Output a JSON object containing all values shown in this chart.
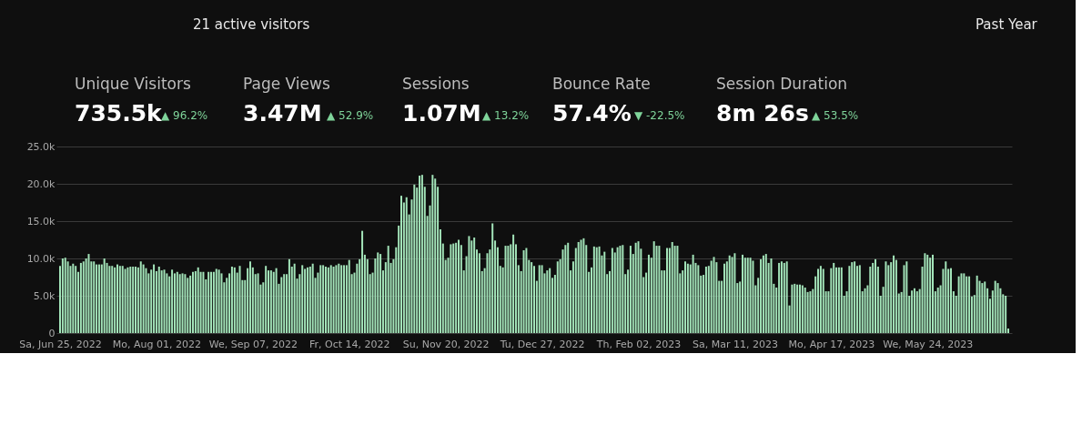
{
  "chart_data": {
    "type": "bar",
    "annotations": [
      "21 active visitors",
      "Past Year",
      "Unique Visitors",
      "735.5k",
      "▲ 96.2%",
      "Page Views",
      "3.47M",
      "▲ 52.9%",
      "Sessions",
      "1.07M",
      "▲ 13.2%",
      "Bounce Rate",
      "57.4%",
      "▼ -22.5%",
      "Session Duration",
      "8m 26s",
      "▲ 53.5%"
    ],
    "x": [
      "2022-06-25",
      "2022-06-26",
      "2022-06-27",
      "2022-06-28",
      "2022-06-29",
      "2022-06-30",
      "2022-07-01",
      "2022-07-02",
      "2022-07-03",
      "2022-07-04",
      "2022-07-05",
      "2022-07-06",
      "2022-07-07",
      "2022-07-08",
      "2022-07-09",
      "2022-07-10",
      "2022-07-11",
      "2022-07-12",
      "2022-07-13",
      "2022-07-14",
      "2022-07-15",
      "2022-07-16",
      "2022-07-17",
      "2022-07-18",
      "2022-07-19",
      "2022-07-20",
      "2022-07-21",
      "2022-07-22",
      "2022-07-23",
      "2022-07-24",
      "2022-07-25",
      "2022-07-26",
      "2022-07-27",
      "2022-07-28",
      "2022-07-29",
      "2022-07-30",
      "2022-07-31",
      "2022-08-01",
      "2022-08-02",
      "2022-08-03",
      "2022-08-04",
      "2022-08-05",
      "2022-08-06",
      "2022-08-07",
      "2022-08-08",
      "2022-08-09",
      "2022-08-10",
      "2022-08-11",
      "2022-08-12",
      "2022-08-13",
      "2022-08-14",
      "2022-08-15",
      "2022-08-16",
      "2022-08-17",
      "2022-08-18",
      "2022-08-19",
      "2022-08-20",
      "2022-08-21",
      "2022-08-22",
      "2022-08-23",
      "2022-08-24",
      "2022-08-25",
      "2022-08-26",
      "2022-08-27",
      "2022-08-28",
      "2022-08-29",
      "2022-08-30",
      "2022-08-31",
      "2022-09-01",
      "2022-09-02",
      "2022-09-03",
      "2022-09-04",
      "2022-09-05",
      "2022-09-06",
      "2022-09-07",
      "2022-09-08",
      "2022-09-09",
      "2022-09-10",
      "2022-09-11",
      "2022-09-12",
      "2022-09-13",
      "2022-09-14",
      "2022-09-15",
      "2022-09-16",
      "2022-09-17",
      "2022-09-18",
      "2022-09-19",
      "2022-09-20",
      "2022-09-21",
      "2022-09-22",
      "2022-09-23",
      "2022-09-24",
      "2022-09-25",
      "2022-09-26",
      "2022-09-27",
      "2022-09-28",
      "2022-09-29",
      "2022-09-30",
      "2022-10-01",
      "2022-10-02",
      "2022-10-03",
      "2022-10-04",
      "2022-10-05",
      "2022-10-06",
      "2022-10-07",
      "2022-10-08",
      "2022-10-09",
      "2022-10-10",
      "2022-10-11",
      "2022-10-12",
      "2022-10-13",
      "2022-10-14",
      "2022-10-15",
      "2022-10-16",
      "2022-10-17",
      "2022-10-18",
      "2022-10-19",
      "2022-10-20",
      "2022-10-21",
      "2022-10-22",
      "2022-10-23",
      "2022-10-24",
      "2022-10-25",
      "2022-10-26",
      "2022-10-27",
      "2022-10-28",
      "2022-10-29",
      "2022-10-30",
      "2022-10-31",
      "2022-11-01",
      "2022-11-02",
      "2022-11-03",
      "2022-11-04",
      "2022-11-05",
      "2022-11-06",
      "2022-11-07",
      "2022-11-08",
      "2022-11-09",
      "2022-11-10",
      "2022-11-11",
      "2022-11-12",
      "2022-11-13",
      "2022-11-14",
      "2022-11-15",
      "2022-11-16",
      "2022-11-17",
      "2022-11-18",
      "2022-11-19",
      "2022-11-20",
      "2022-11-21",
      "2022-11-22",
      "2022-11-23",
      "2022-11-24",
      "2022-11-25",
      "2022-11-26",
      "2022-11-27",
      "2022-11-28",
      "2022-11-29",
      "2022-11-30",
      "2022-12-01",
      "2022-12-02",
      "2022-12-03",
      "2022-12-04",
      "2022-12-05",
      "2022-12-06",
      "2022-12-07",
      "2022-12-08",
      "2022-12-09",
      "2022-12-10",
      "2022-12-11",
      "2022-12-12",
      "2022-12-13",
      "2022-12-14",
      "2022-12-15",
      "2022-12-16",
      "2022-12-17",
      "2022-12-18",
      "2022-12-19",
      "2022-12-20",
      "2022-12-21",
      "2022-12-22",
      "2022-12-23",
      "2022-12-24",
      "2022-12-25",
      "2022-12-26",
      "2022-12-27",
      "2022-12-28",
      "2022-12-29",
      "2022-12-30",
      "2022-12-31",
      "2023-01-01",
      "2023-01-02",
      "2023-01-03",
      "2023-01-04",
      "2023-01-05",
      "2023-01-06",
      "2023-01-07",
      "2023-01-08",
      "2023-01-09",
      "2023-01-10",
      "2023-01-11",
      "2023-01-12",
      "2023-01-13",
      "2023-01-14",
      "2023-01-15",
      "2023-01-16",
      "2023-01-17",
      "2023-01-18",
      "2023-01-19",
      "2023-01-20",
      "2023-01-21",
      "2023-01-22",
      "2023-01-23",
      "2023-01-24",
      "2023-01-25",
      "2023-01-26",
      "2023-01-27",
      "2023-01-28",
      "2023-01-29",
      "2023-01-30",
      "2023-01-31",
      "2023-02-01",
      "2023-02-02",
      "2023-02-03",
      "2023-02-04",
      "2023-02-05",
      "2023-02-06",
      "2023-02-07",
      "2023-02-08",
      "2023-02-09",
      "2023-02-10",
      "2023-02-11",
      "2023-02-12",
      "2023-02-13",
      "2023-02-14",
      "2023-02-15",
      "2023-02-16",
      "2023-02-17",
      "2023-02-18",
      "2023-02-19",
      "2023-02-20",
      "2023-02-21",
      "2023-02-22",
      "2023-02-23",
      "2023-02-24",
      "2023-02-25",
      "2023-02-26",
      "2023-02-27",
      "2023-02-28",
      "2023-03-01",
      "2023-03-02",
      "2023-03-03",
      "2023-03-04",
      "2023-03-05",
      "2023-03-06",
      "2023-03-07",
      "2023-03-08",
      "2023-03-09",
      "2023-03-10",
      "2023-03-11",
      "2023-03-12",
      "2023-03-13",
      "2023-03-14",
      "2023-03-15",
      "2023-03-16",
      "2023-03-17",
      "2023-03-18",
      "2023-03-19",
      "2023-03-20",
      "2023-03-21",
      "2023-03-22",
      "2023-03-23",
      "2023-03-24",
      "2023-03-25",
      "2023-03-26",
      "2023-03-27",
      "2023-03-28",
      "2023-03-29",
      "2023-03-30",
      "2023-03-31",
      "2023-04-01",
      "2023-04-02",
      "2023-04-03",
      "2023-04-04",
      "2023-04-05",
      "2023-04-06",
      "2023-04-07",
      "2023-04-08",
      "2023-04-09",
      "2023-04-10",
      "2023-04-11",
      "2023-04-12",
      "2023-04-13",
      "2023-04-14",
      "2023-04-15",
      "2023-04-16",
      "2023-04-17",
      "2023-04-18",
      "2023-04-19",
      "2023-04-20",
      "2023-04-21",
      "2023-04-22",
      "2023-04-23",
      "2023-04-24",
      "2023-04-25",
      "2023-04-26",
      "2023-04-27",
      "2023-04-28",
      "2023-04-29",
      "2023-04-30",
      "2023-05-01",
      "2023-05-02",
      "2023-05-03",
      "2023-05-04",
      "2023-05-05",
      "2023-05-06",
      "2023-05-07",
      "2023-05-08",
      "2023-05-09",
      "2023-05-10",
      "2023-05-11",
      "2023-05-12",
      "2023-05-13",
      "2023-05-14",
      "2023-05-15",
      "2023-05-16",
      "2023-05-17",
      "2023-05-18",
      "2023-05-19",
      "2023-05-20",
      "2023-05-21",
      "2023-05-22",
      "2023-05-23",
      "2023-05-24",
      "2023-05-25",
      "2023-05-26",
      "2023-05-27",
      "2023-05-28",
      "2023-05-29",
      "2023-05-30",
      "2023-05-31",
      "2023-06-01",
      "2023-06-02",
      "2023-06-03",
      "2023-06-04",
      "2023-06-05",
      "2023-06-06",
      "2023-06-07",
      "2023-06-08",
      "2023-06-09",
      "2023-06-10",
      "2023-06-11",
      "2023-06-12",
      "2023-06-13",
      "2023-06-14",
      "2023-06-15",
      "2023-06-16",
      "2023-06-17",
      "2023-06-18",
      "2023-06-19",
      "2023-06-20",
      "2023-06-21",
      "2023-06-22",
      "2023-06-23",
      "2023-06-24"
    ],
    "values": [
      9000,
      10000,
      10100,
      9600,
      9000,
      9300,
      9000,
      8200,
      9400,
      9600,
      10000,
      10600,
      9600,
      9600,
      9200,
      9200,
      9200,
      10000,
      9400,
      9000,
      9000,
      8800,
      9200,
      9000,
      9000,
      8600,
      8800,
      8900,
      8900,
      8900,
      8800,
      9600,
      9200,
      8700,
      8000,
      8500,
      9200,
      8300,
      8900,
      8400,
      8500,
      8000,
      7600,
      8500,
      8000,
      8200,
      7900,
      8000,
      7900,
      7400,
      7700,
      8200,
      8300,
      8800,
      8200,
      8200,
      7200,
      8200,
      8200,
      8200,
      8600,
      8500,
      8000,
      6800,
      7400,
      8000,
      8900,
      8800,
      8100,
      9000,
      7100,
      7100,
      8700,
      9600,
      8800,
      7900,
      8000,
      6500,
      6800,
      9000,
      8400,
      8400,
      8200,
      8700,
      6600,
      7500,
      7900,
      7900,
      9900,
      8900,
      9300,
      7300,
      7900,
      9100,
      8600,
      8800,
      8900,
      9300,
      7400,
      8100,
      9100,
      9100,
      8900,
      8800,
      9100,
      8900,
      9100,
      9300,
      9100,
      9100,
      9100,
      9800,
      7900,
      8100,
      9300,
      9900,
      13700,
      10500,
      9900,
      7900,
      8100,
      10000,
      10800,
      10600,
      8400,
      9500,
      11700,
      9400,
      9900,
      11500,
      14400,
      18400,
      17500,
      18200,
      15900,
      17900,
      19900,
      19500,
      21100,
      21200,
      19600,
      15700,
      17100,
      21200,
      20700,
      19600,
      13900,
      12000,
      9800,
      10100,
      11900,
      12000,
      12100,
      12500,
      11800,
      8400,
      10300,
      13000,
      12400,
      12800,
      11200,
      10700,
      8300,
      8700,
      10700,
      11200,
      14700,
      12400,
      11500,
      9000,
      8800,
      11700,
      11700,
      11900,
      13200,
      11900,
      9100,
      8300,
      11100,
      11400,
      9800,
      9500,
      9000,
      7000,
      9100,
      9100,
      8000,
      8400,
      8700,
      7400,
      7800,
      9600,
      9900,
      11200,
      11800,
      12100,
      8400,
      9600,
      11400,
      12200,
      12500,
      12700,
      11800,
      8200,
      8800,
      11600,
      11500,
      11600,
      10400,
      10900,
      7900,
      8300,
      11400,
      10800,
      11500,
      11700,
      11800,
      7900,
      8500,
      11700,
      10600,
      12100,
      12300,
      11300,
      7500,
      8100,
      10500,
      10100,
      12300,
      11700,
      11700,
      8400,
      8400,
      11400,
      11400,
      12200,
      11700,
      11700,
      8000,
      8400,
      9600,
      9300,
      9200,
      10500,
      9400,
      9100,
      7700,
      7800,
      8900,
      9000,
      9700,
      10200,
      9500,
      7000,
      7000,
      9300,
      9600,
      10400,
      10200,
      10700,
      6700,
      6900,
      10500,
      10100,
      10100,
      10100,
      9700,
      6400,
      7400,
      9900,
      10400,
      10600,
      9400,
      10000,
      6600,
      6100,
      9400,
      9600,
      9400,
      9600,
      3700,
      6500,
      6600,
      6500,
      6500,
      6400,
      6100,
      5500,
      5600,
      5900,
      7600,
      8600,
      9000,
      8600,
      5600,
      5600,
      8700,
      9400,
      8800,
      8800,
      8800,
      5000,
      5600,
      9000,
      9500,
      9600,
      9000,
      9100,
      5600,
      6000,
      6400,
      8900,
      9400,
      9900,
      8900,
      5000,
      6200,
      9600,
      9100,
      9500,
      10400,
      9800,
      5300,
      5500,
      9100,
      9600,
      5000,
      5700,
      6000,
      5600,
      5900,
      8900,
      10700,
      10500,
      10100,
      10500,
      5600,
      6100,
      6400,
      8600,
      9600,
      8600,
      8700,
      5600,
      5000,
      7600,
      8000,
      8000,
      7600,
      7600,
      4900,
      5100,
      7700,
      7000,
      6700,
      6900,
      6000,
      4600,
      5700,
      7000,
      6700,
      6000,
      5200,
      5000,
      600
    ],
    "color": "#a3e4b9",
    "xlim": [
      "2022-06-25",
      "2023-06-24"
    ],
    "xticks": [
      {
        "value": "2022-06-25",
        "label": "Sa, Jun 25, 2022"
      },
      {
        "value": "2022-08-01",
        "label": "Mo, Aug 01, 2022"
      },
      {
        "value": "2022-09-07",
        "label": "We, Sep 07, 2022"
      },
      {
        "value": "2022-10-14",
        "label": "Fr, Oct 14, 2022"
      },
      {
        "value": "2022-11-20",
        "label": "Su, Nov 20, 2022"
      },
      {
        "value": "2022-12-27",
        "label": "Tu, Dec 27, 2022"
      },
      {
        "value": "2023-02-02",
        "label": "Th, Feb 02, 2023"
      },
      {
        "value": "2023-03-11",
        "label": "Sa, Mar 11, 2023"
      },
      {
        "value": "2023-04-17",
        "label": "Mo, Apr 17, 2023"
      },
      {
        "value": "2023-05-24",
        "label": "We, May 24, 2023"
      }
    ],
    "ylim": [
      0,
      25000
    ],
    "yticks": [
      0,
      {
        "value": 5000,
        "label": "5.0k"
      },
      {
        "value": 10000,
        "label": "10.0k"
      },
      {
        "value": 15000,
        "label": "15.0k"
      },
      {
        "value": 20000,
        "label": "20.0k"
      },
      {
        "value": 25000,
        "label": "25.0k"
      }
    ],
    "grid": "y"
  }
}
